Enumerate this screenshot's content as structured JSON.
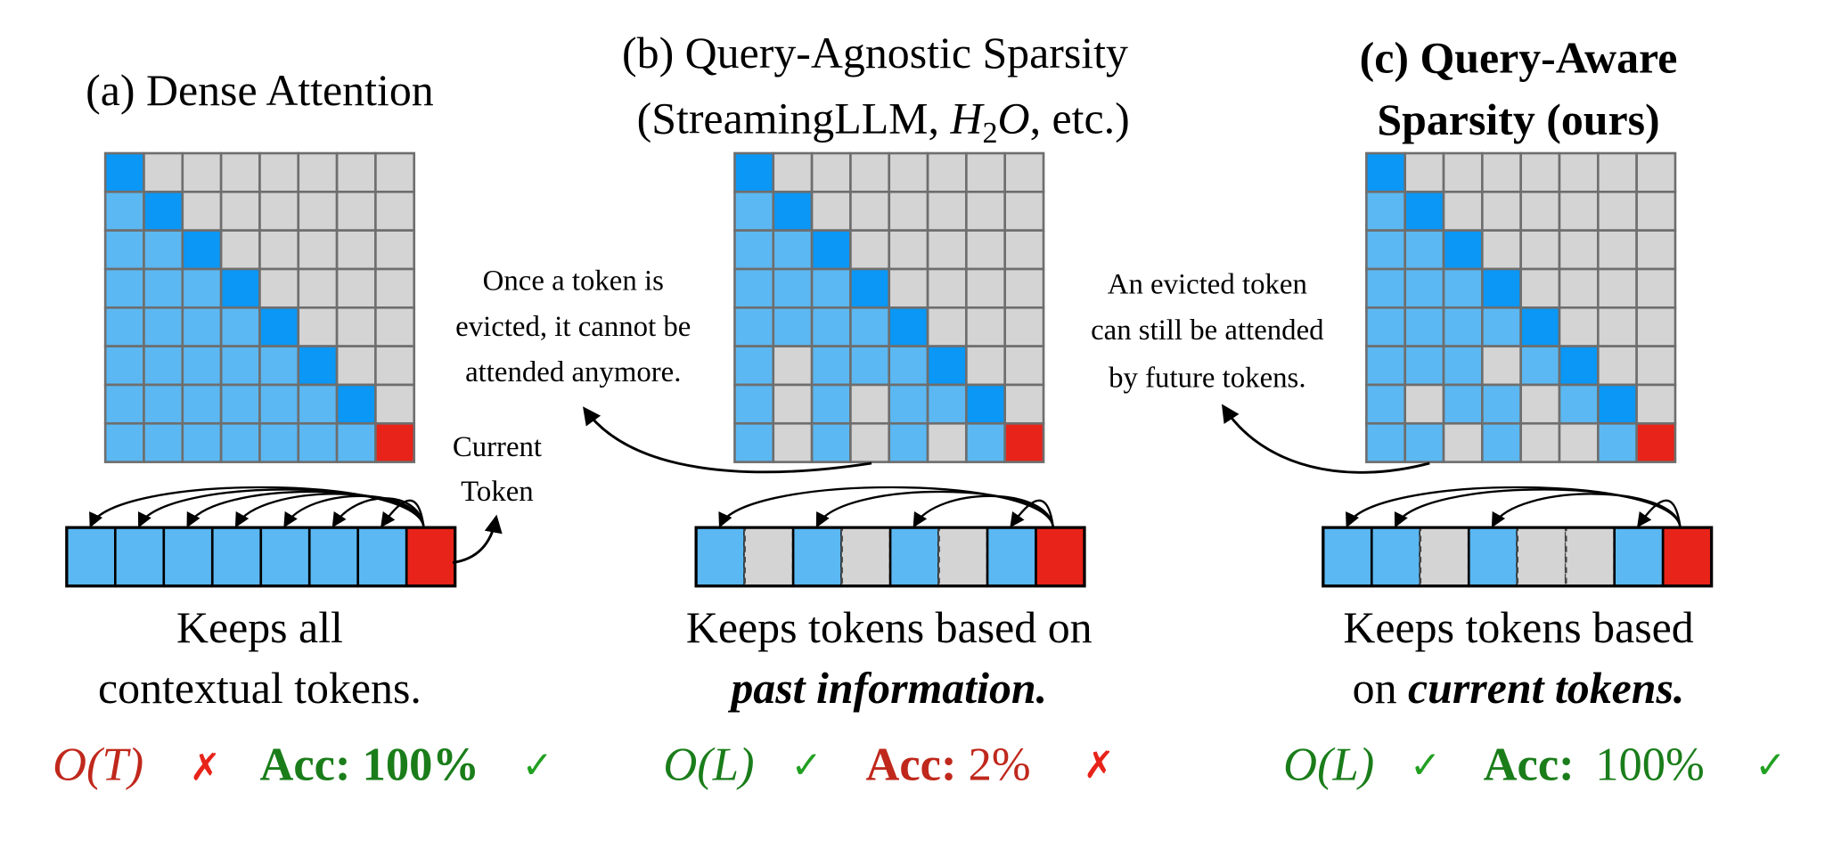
{
  "panels": [
    {
      "title": [
        "(a) Dense Attention"
      ],
      "annotation": [
        "Current",
        "Token"
      ],
      "caption": [
        "Keeps all",
        "contextual tokens."
      ],
      "complexity": "O(T)",
      "complexity_mark": "✗",
      "accuracy_label": "Acc:",
      "accuracy": "100%",
      "accuracy_mark": "✓"
    },
    {
      "title": [
        "(b) Query-Agnostic Sparsity",
        [
          "(StreamingLLM, ",
          "H",
          "2",
          "O",
          ", etc.)"
        ]
      ],
      "annotation": [
        "Once a token is",
        "evicted, it cannot be",
        "attended anymore."
      ],
      "caption": [
        "Keeps tokens based on",
        "past information."
      ],
      "complexity": "O(L)",
      "complexity_mark": "✓",
      "accuracy_label": "Acc:",
      "accuracy": "2%",
      "accuracy_mark": "✗"
    },
    {
      "title": [
        "(c) Query-Aware",
        "Sparsity (ours)"
      ],
      "annotation": [
        "An evicted token",
        "can still be attended",
        "by future tokens."
      ],
      "caption": [
        "Keeps tokens based",
        [
          "on ",
          "current tokens."
        ]
      ],
      "complexity": "O(L)",
      "complexity_mark": "✓",
      "accuracy_label": "Acc:",
      "accuracy": "100%",
      "accuracy_mark": "✓"
    }
  ]
}
